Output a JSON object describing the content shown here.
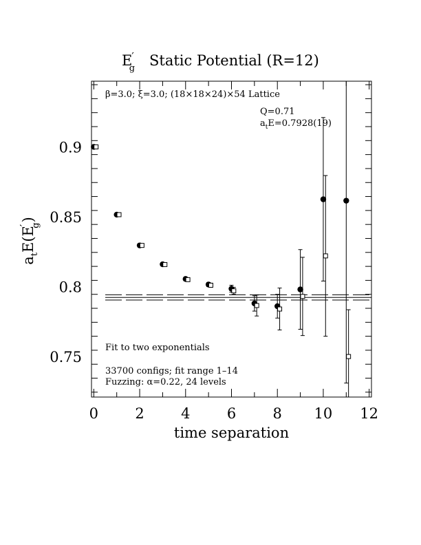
{
  "chart_data": {
    "type": "scatter",
    "title": {
      "main": "E",
      "prime": "′",
      "sub": "g",
      "rest": "Static Potential (R=12)"
    },
    "xlabel": "time separation",
    "ylabel": {
      "a": "a",
      "a_sub": "t",
      "mid": "E(E",
      "prime": "′",
      "sub": "g",
      "close": ")"
    },
    "xlim": [
      -0.1,
      12.1
    ],
    "ylim": [
      0.7215,
      0.9475
    ],
    "x_ticks": [
      0,
      2,
      4,
      6,
      8,
      10,
      12
    ],
    "x_tick_labels": [
      "0",
      "2",
      "4",
      "6",
      "8",
      "10",
      "12"
    ],
    "y_ticks": [
      0.75,
      0.8,
      0.85,
      0.9
    ],
    "y_tick_labels": [
      "0.75",
      "0.8",
      "0.85",
      "0.9"
    ],
    "grid": false,
    "series": [
      {
        "marker": "filled-circle",
        "x": [
          0,
          1,
          2,
          3,
          4,
          5,
          6,
          7,
          8,
          9,
          10,
          11
        ],
        "y": [
          0.9005,
          0.852,
          0.83,
          0.8165,
          0.806,
          0.802,
          0.799,
          0.7885,
          0.7865,
          0.7985,
          0.863,
          0.862
        ],
        "err": [
          0.0005,
          0.0006,
          0.0008,
          0.001,
          0.0012,
          0.0015,
          0.0025,
          0.0055,
          0.0085,
          0.0285,
          0.0585,
          0.1305
        ]
      },
      {
        "marker": "open-square",
        "x": [
          0.1,
          1.1,
          2.1,
          3.1,
          4.1,
          5.1,
          6.1,
          7.1,
          8.1,
          9.1,
          10.1,
          11.1
        ],
        "y": [
          0.9005,
          0.852,
          0.83,
          0.8163,
          0.8055,
          0.8015,
          0.7975,
          0.787,
          0.7845,
          0.7935,
          0.8225,
          0.7505
        ],
        "err": [
          0.0005,
          0.0006,
          0.0008,
          0.001,
          0.0012,
          0.0015,
          0.0025,
          0.0075,
          0.015,
          0.028,
          0.0575,
          0.0335
        ]
      }
    ],
    "fit_band": {
      "x_range": [
        0.5,
        12.1
      ],
      "center": 0.7928,
      "err": 0.0019
    },
    "annotations": {
      "lattice": "β=3.0; ξ=3.0; (18×18×24)×54 Lattice",
      "q": "Q=0.71",
      "energy": {
        "a": "a",
        "a_sub": "t",
        "rest": "E=0.7928(19)"
      },
      "fit": "Fit to two exponentials",
      "configs": "33700 configs; fit range 1–14",
      "fuzzing": "Fuzzing: α=0.22, 24 levels"
    }
  }
}
